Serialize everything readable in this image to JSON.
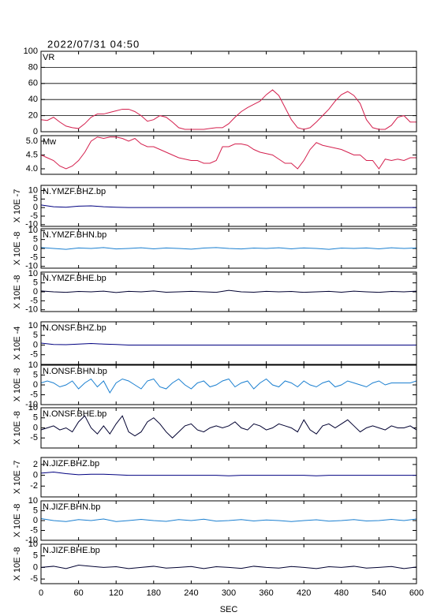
{
  "chart_data": [
    {
      "type": "line",
      "title": "2022/07/31 04:50",
      "label": "VR",
      "color": "#d4204e",
      "grid": true,
      "xlim": [
        0,
        600
      ],
      "ylim": [
        0,
        100
      ],
      "yticks": [
        0,
        20,
        40,
        60,
        80,
        100
      ],
      "x": [
        0,
        10,
        20,
        30,
        40,
        50,
        60,
        70,
        80,
        90,
        100,
        110,
        120,
        130,
        140,
        150,
        160,
        170,
        180,
        190,
        200,
        210,
        220,
        230,
        240,
        250,
        260,
        270,
        280,
        290,
        300,
        310,
        320,
        330,
        340,
        350,
        360,
        370,
        380,
        390,
        400,
        410,
        420,
        430,
        440,
        450,
        460,
        470,
        480,
        490,
        500,
        510,
        520,
        530,
        540,
        550,
        560,
        570,
        580,
        590,
        600
      ],
      "values": [
        15,
        14,
        18,
        12,
        7,
        5,
        4,
        10,
        18,
        22,
        22,
        24,
        26,
        28,
        28,
        25,
        20,
        13,
        15,
        20,
        18,
        12,
        5,
        3,
        3,
        3,
        3,
        4,
        5,
        5,
        10,
        18,
        25,
        30,
        34,
        38,
        46,
        52,
        45,
        30,
        15,
        5,
        3,
        5,
        12,
        20,
        28,
        38,
        46,
        50,
        45,
        35,
        15,
        5,
        3,
        3,
        8,
        18,
        20,
        12,
        12
      ]
    },
    {
      "type": "line",
      "label": "Mw",
      "color": "#d4204e",
      "grid": false,
      "xlim": [
        0,
        600
      ],
      "ylim": [
        3.8,
        5.2
      ],
      "yticks": [
        {
          "value": 4,
          "label": "4.0"
        },
        {
          "value": 4.5,
          "label": "4.5"
        },
        {
          "value": 5,
          "label": "5.0"
        }
      ],
      "x": [
        0,
        10,
        20,
        30,
        40,
        50,
        60,
        70,
        80,
        90,
        100,
        110,
        120,
        130,
        140,
        150,
        160,
        170,
        180,
        190,
        200,
        210,
        220,
        230,
        240,
        250,
        260,
        270,
        280,
        290,
        300,
        310,
        320,
        330,
        340,
        350,
        360,
        370,
        380,
        390,
        400,
        410,
        420,
        430,
        440,
        450,
        460,
        470,
        480,
        490,
        500,
        510,
        520,
        530,
        540,
        550,
        560,
        570,
        580,
        590,
        600
      ],
      "values": [
        4.5,
        4.4,
        4.3,
        4.1,
        4.0,
        4.1,
        4.3,
        4.6,
        5.0,
        5.15,
        5.1,
        5.15,
        5.15,
        5.1,
        5.0,
        5.1,
        4.9,
        4.8,
        4.8,
        4.7,
        4.6,
        4.5,
        4.4,
        4.35,
        4.3,
        4.3,
        4.2,
        4.2,
        4.3,
        4.8,
        4.8,
        4.9,
        4.9,
        4.85,
        4.7,
        4.6,
        4.55,
        4.5,
        4.35,
        4.2,
        4.2,
        4.0,
        4.3,
        4.7,
        4.95,
        4.85,
        4.8,
        4.75,
        4.7,
        4.6,
        4.5,
        4.5,
        4.3,
        4.3,
        4.0,
        4.35,
        4.3,
        4.35,
        4.3,
        4.4,
        4.4
      ]
    },
    {
      "type": "line",
      "label": "N.YMZF.BHZ.bp",
      "ylabel": "X 10E -7",
      "color": "#000080",
      "grid": false,
      "xlim": [
        0,
        600
      ],
      "ylim": [
        -11,
        13
      ],
      "yticks": [
        -10,
        -5,
        0,
        5,
        10
      ],
      "x": [
        0,
        20,
        40,
        60,
        80,
        100,
        120,
        140,
        160,
        180,
        200,
        220,
        240,
        260,
        280,
        300,
        320,
        340,
        360,
        380,
        400,
        420,
        440,
        460,
        480,
        500,
        520,
        540,
        560,
        580,
        600
      ],
      "values": [
        1.5,
        0.5,
        0.2,
        0.8,
        1,
        0.5,
        0.2,
        0,
        0,
        0,
        0,
        0,
        0,
        0,
        0,
        0,
        0,
        0,
        0,
        0,
        0,
        0,
        0,
        0,
        0,
        0,
        0,
        0,
        0,
        0,
        0
      ]
    },
    {
      "type": "line",
      "label": "N.YMZF.BHN.bp",
      "ylabel": "X 10E -8",
      "color": "#1a7fd0",
      "grid": false,
      "xlim": [
        0,
        600
      ],
      "ylim": [
        -11,
        11
      ],
      "yticks": [
        -10,
        -5,
        0,
        5,
        10
      ],
      "x": [
        0,
        20,
        40,
        60,
        80,
        100,
        120,
        140,
        160,
        180,
        200,
        220,
        240,
        260,
        280,
        300,
        320,
        340,
        360,
        380,
        400,
        420,
        440,
        460,
        480,
        500,
        520,
        540,
        560,
        580,
        600
      ],
      "values": [
        0.5,
        0,
        -0.5,
        0.3,
        0,
        0.5,
        -0.3,
        0,
        0.4,
        -0.2,
        0.3,
        0,
        -0.4,
        0.2,
        0.5,
        0,
        -0.3,
        0.2,
        0,
        0.4,
        -0.2,
        0.3,
        0,
        -0.5,
        0.2,
        0,
        0.3,
        -0.2,
        0.4,
        0,
        0.3
      ]
    },
    {
      "type": "line",
      "label": "N.YMZF.BHE.bp",
      "ylabel": "X 10E -8",
      "color": "#000030",
      "grid": false,
      "xlim": [
        0,
        600
      ],
      "ylim": [
        -11,
        11
      ],
      "yticks": [
        -10,
        -5,
        0,
        5,
        10
      ],
      "x": [
        0,
        20,
        40,
        60,
        80,
        100,
        120,
        140,
        160,
        180,
        200,
        220,
        240,
        260,
        280,
        300,
        320,
        340,
        360,
        380,
        400,
        420,
        440,
        460,
        480,
        500,
        520,
        540,
        560,
        580,
        600
      ],
      "values": [
        0.5,
        0,
        -0.3,
        0.2,
        0,
        0.4,
        -0.4,
        0.3,
        0,
        0.5,
        -0.2,
        0,
        0.3,
        0,
        -0.3,
        0.8,
        0,
        -0.2,
        0.3,
        0,
        0.2,
        -0.3,
        0,
        0.3,
        -0.2,
        0.4,
        0,
        -0.3,
        0.2,
        0,
        0.4
      ]
    },
    {
      "type": "line",
      "label": "N.ONSF.BHZ.bp",
      "ylabel": "X 10E -4",
      "color": "#000080",
      "grid": false,
      "xlim": [
        0,
        600
      ],
      "ylim": [
        -10,
        12
      ],
      "yticks": [
        -5,
        0,
        5,
        10
      ],
      "x": [
        0,
        20,
        40,
        60,
        80,
        100,
        120,
        140,
        160,
        180,
        200,
        220,
        240,
        260,
        280,
        300,
        320,
        340,
        360,
        380,
        400,
        420,
        440,
        460,
        480,
        500,
        520,
        540,
        560,
        580,
        600
      ],
      "values": [
        1,
        0.3,
        0.2,
        0.5,
        0.8,
        0.5,
        0.3,
        0,
        0,
        0,
        0,
        0,
        0,
        0,
        0,
        0,
        0,
        0,
        0,
        0,
        0,
        0,
        0,
        0,
        0,
        0,
        0,
        0,
        0,
        0,
        0
      ]
    },
    {
      "type": "line",
      "label": "N.ONSF.BHN.bp",
      "ylabel": "X 10E -8",
      "color": "#1a7fd0",
      "grid": false,
      "xlim": [
        0,
        600
      ],
      "ylim": [
        -10,
        10
      ],
      "yticks": [
        -10,
        -5,
        0,
        5,
        10
      ],
      "x": [
        0,
        10,
        20,
        30,
        40,
        50,
        60,
        70,
        80,
        90,
        100,
        110,
        120,
        130,
        140,
        150,
        160,
        170,
        180,
        190,
        200,
        210,
        220,
        230,
        240,
        250,
        260,
        270,
        280,
        290,
        300,
        310,
        320,
        330,
        340,
        350,
        360,
        370,
        380,
        390,
        400,
        410,
        420,
        430,
        440,
        450,
        460,
        470,
        480,
        490,
        500,
        510,
        520,
        530,
        540,
        550,
        560,
        570,
        580,
        590,
        600
      ],
      "values": [
        1,
        2,
        1,
        -1,
        0,
        2,
        -2,
        1,
        3,
        -1,
        2,
        -4,
        1,
        3,
        2,
        0,
        -2,
        2,
        3,
        -1,
        -2,
        1,
        3,
        0,
        -2,
        1,
        2,
        -1,
        0,
        2,
        3,
        -1,
        1,
        2,
        -2,
        1,
        3,
        0,
        -1,
        2,
        1,
        -1,
        2,
        0,
        -1,
        1,
        2,
        -1,
        0,
        2,
        1,
        0,
        -1,
        1,
        2,
        0,
        1,
        1,
        1,
        1,
        2
      ]
    },
    {
      "type": "line",
      "label": "N.ONSF.BHE.bp",
      "ylabel": "X 10E -8",
      "color": "#000030",
      "grid": false,
      "xlim": [
        0,
        600
      ],
      "ylim": [
        -10,
        10
      ],
      "yticks": [
        -5,
        0,
        5,
        10
      ],
      "x": [
        0,
        10,
        20,
        30,
        40,
        50,
        60,
        70,
        80,
        90,
        100,
        110,
        120,
        130,
        140,
        150,
        160,
        170,
        180,
        190,
        200,
        210,
        220,
        230,
        240,
        250,
        260,
        270,
        280,
        290,
        300,
        310,
        320,
        330,
        340,
        350,
        360,
        370,
        380,
        390,
        400,
        410,
        420,
        430,
        440,
        450,
        460,
        470,
        480,
        490,
        500,
        510,
        520,
        530,
        540,
        550,
        560,
        570,
        580,
        590,
        600
      ],
      "values": [
        -1,
        0,
        1,
        -1,
        0,
        -2,
        3,
        6,
        0,
        -3,
        1,
        -3,
        2,
        6,
        -2,
        -4,
        -2,
        3,
        5,
        2,
        -2,
        -5,
        -2,
        1,
        2,
        -1,
        -2,
        0,
        1,
        0,
        1,
        3,
        0,
        -1,
        2,
        1,
        -1,
        0,
        2,
        1,
        0,
        -2,
        4,
        -1,
        -3,
        1,
        2,
        0,
        2,
        4,
        1,
        -2,
        0,
        1,
        0,
        -1,
        1,
        0,
        0,
        1,
        -1
      ]
    },
    {
      "type": "line",
      "label": "N.JIZF.BHZ.bp",
      "ylabel": "X 10E -7",
      "color": "#000080",
      "grid": false,
      "xlim": [
        0,
        600
      ],
      "ylim": [
        -4,
        3.3
      ],
      "yticks": [
        -2,
        0,
        2
      ],
      "x": [
        0,
        20,
        40,
        60,
        80,
        100,
        120,
        140,
        160,
        180,
        200,
        220,
        240,
        260,
        280,
        300,
        320,
        340,
        360,
        380,
        400,
        420,
        440,
        460,
        480,
        500,
        520,
        540,
        560,
        580,
        600
      ],
      "values": [
        0.4,
        0.6,
        0.3,
        0.1,
        0.2,
        0.2,
        0.1,
        0,
        0,
        0,
        0,
        0,
        0,
        0,
        0,
        -0.1,
        0,
        0,
        0,
        0,
        0,
        0,
        -0.1,
        0,
        0,
        0,
        0,
        0,
        0,
        0,
        0
      ]
    },
    {
      "type": "line",
      "label": "N.JIZF.BHN.bp",
      "ylabel": "X 10E -8",
      "color": "#1a7fd0",
      "grid": false,
      "xlim": [
        0,
        600
      ],
      "ylim": [
        -10,
        10
      ],
      "yticks": [
        -10,
        -5,
        0,
        5,
        10
      ],
      "x": [
        0,
        20,
        40,
        60,
        80,
        100,
        120,
        140,
        160,
        180,
        200,
        220,
        240,
        260,
        280,
        300,
        320,
        340,
        360,
        380,
        400,
        420,
        440,
        460,
        480,
        500,
        520,
        540,
        560,
        580,
        600
      ],
      "values": [
        1,
        0,
        -0.5,
        0.5,
        0,
        0.8,
        -0.5,
        0,
        0.6,
        0,
        -0.4,
        0.5,
        0,
        0.7,
        -0.3,
        0,
        0.5,
        -0.2,
        0.3,
        0,
        -0.5,
        0,
        0.4,
        -0.3,
        0,
        0.5,
        -0.2,
        0,
        0.6,
        0,
        0.8
      ]
    },
    {
      "type": "line",
      "label": "N.JIZF.BHE.bp",
      "ylabel": "X 10E -8",
      "color": "#000030",
      "grid": false,
      "xlim": [
        0,
        600
      ],
      "ylim": [
        -7,
        10
      ],
      "yticks": [
        -5,
        0,
        5,
        10
      ],
      "xticks": [
        0,
        60,
        120,
        180,
        240,
        300,
        360,
        420,
        480,
        540,
        600
      ],
      "xlabel": "SEC",
      "x": [
        0,
        20,
        40,
        60,
        80,
        100,
        120,
        140,
        160,
        180,
        200,
        220,
        240,
        260,
        280,
        300,
        320,
        340,
        360,
        380,
        400,
        420,
        440,
        460,
        480,
        500,
        520,
        540,
        560,
        580,
        600
      ],
      "values": [
        0,
        0.5,
        -0.5,
        1,
        0.5,
        0,
        0.3,
        -0.5,
        0,
        0.5,
        -0.3,
        0,
        0.4,
        -0.5,
        0.3,
        0,
        -0.4,
        0.5,
        0,
        -0.3,
        0.4,
        0,
        -0.5,
        0.3,
        0,
        0.5,
        -0.3,
        0,
        0.4,
        -0.5,
        0.2
      ]
    }
  ]
}
